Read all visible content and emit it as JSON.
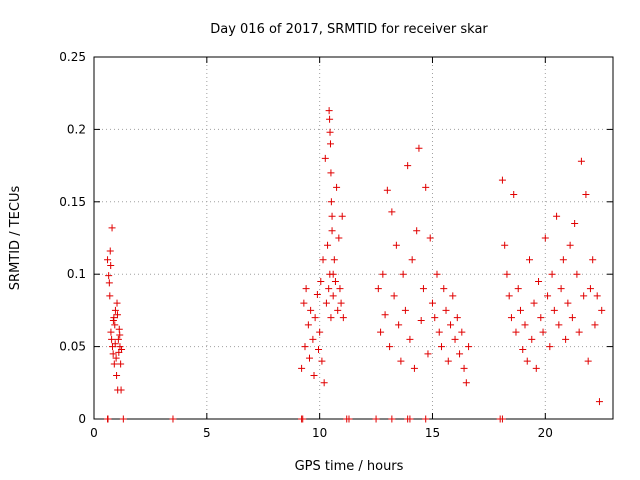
{
  "chart_data": {
    "type": "scatter",
    "title": "Day 016 of 2017, SRMTID for receiver skar",
    "xlabel": "GPS time / hours",
    "ylabel": "SRMTID / TECUs",
    "xlim": [
      0,
      23.0
    ],
    "ylim": [
      0,
      0.25
    ],
    "xticks": [
      0,
      5,
      10,
      15,
      20
    ],
    "xtick_labels": [
      "0",
      "5",
      "10",
      "15",
      "20"
    ],
    "yticks": [
      0,
      0.05,
      0.1,
      0.15,
      0.2,
      0.25
    ],
    "ytick_labels": [
      "0",
      "0.05",
      "0.1",
      "0.15",
      "0.2",
      "0.25"
    ],
    "grid": true,
    "marker": "+",
    "color": "#e00000",
    "series": [
      {
        "name": "SRMTID",
        "x": [
          0.6,
          0.65,
          0.7,
          0.72,
          0.75,
          0.78,
          0.8,
          0.82,
          0.85,
          0.88,
          0.9,
          0.92,
          0.95,
          0.98,
          1.0,
          1.02,
          1.05,
          1.08,
          1.1,
          1.12,
          1.15,
          1.18,
          1.2,
          1.22,
          0.68,
          0.74,
          0.86,
          0.94,
          1.04,
          1.14,
          9.2,
          9.3,
          9.35,
          9.4,
          9.5,
          9.55,
          9.6,
          9.7,
          9.75,
          9.8,
          9.9,
          9.95,
          10.0,
          10.05,
          10.1,
          10.15,
          10.2,
          10.25,
          10.3,
          10.35,
          10.4,
          10.45,
          10.5,
          10.55,
          10.6,
          10.65,
          10.7,
          10.75,
          10.8,
          10.85,
          10.9,
          10.95,
          11.0,
          11.05,
          10.42,
          10.44,
          10.46,
          10.48,
          10.5,
          10.52,
          10.55,
          10.6,
          12.6,
          12.7,
          12.8,
          12.9,
          13.0,
          13.1,
          13.2,
          13.3,
          13.4,
          13.5,
          13.6,
          13.7,
          13.8,
          13.9,
          14.0,
          14.1,
          14.2,
          14.3,
          14.4,
          14.5,
          14.6,
          14.7,
          14.8,
          14.9,
          15.0,
          15.1,
          15.2,
          15.3,
          15.4,
          15.5,
          15.6,
          15.7,
          15.8,
          15.9,
          16.0,
          16.1,
          16.2,
          16.3,
          16.4,
          16.5,
          16.6,
          18.1,
          18.2,
          18.3,
          18.4,
          18.5,
          18.6,
          18.7,
          18.8,
          18.9,
          19.0,
          19.1,
          19.2,
          19.3,
          19.4,
          19.5,
          19.6,
          19.7,
          19.8,
          19.9,
          20.0,
          20.1,
          20.2,
          20.3,
          20.4,
          20.5,
          20.6,
          20.7,
          20.8,
          20.9,
          21.0,
          21.1,
          21.2,
          21.3,
          21.4,
          21.5,
          21.6,
          21.7,
          21.8,
          21.9,
          22.0,
          22.1,
          22.2,
          22.3,
          22.4,
          22.5,
          0.6,
          0.62,
          1.3,
          3.5,
          9.2,
          9.25,
          11.2,
          11.3,
          12.5,
          13.2,
          13.9,
          14.0,
          14.7,
          18.0,
          18.1
        ],
        "y": [
          0.11,
          0.099,
          0.085,
          0.116,
          0.06,
          0.055,
          0.132,
          0.05,
          0.045,
          0.07,
          0.038,
          0.065,
          0.075,
          0.042,
          0.03,
          0.08,
          0.02,
          0.055,
          0.046,
          0.062,
          0.05,
          0.038,
          0.02,
          0.048,
          0.094,
          0.106,
          0.068,
          0.052,
          0.072,
          0.058,
          0.035,
          0.08,
          0.05,
          0.09,
          0.065,
          0.042,
          0.075,
          0.055,
          0.03,
          0.07,
          0.086,
          0.048,
          0.06,
          0.095,
          0.04,
          0.11,
          0.025,
          0.18,
          0.08,
          0.12,
          0.09,
          0.1,
          0.07,
          0.13,
          0.085,
          0.11,
          0.095,
          0.16,
          0.075,
          0.125,
          0.09,
          0.08,
          0.14,
          0.07,
          0.213,
          0.207,
          0.198,
          0.19,
          0.17,
          0.15,
          0.14,
          0.1,
          0.09,
          0.06,
          0.1,
          0.072,
          0.158,
          0.05,
          0.143,
          0.085,
          0.12,
          0.065,
          0.04,
          0.1,
          0.075,
          0.175,
          0.055,
          0.11,
          0.035,
          0.13,
          0.187,
          0.068,
          0.09,
          0.16,
          0.045,
          0.125,
          0.08,
          0.07,
          0.1,
          0.06,
          0.05,
          0.09,
          0.075,
          0.04,
          0.065,
          0.085,
          0.055,
          0.07,
          0.045,
          0.06,
          0.035,
          0.025,
          0.05,
          0.165,
          0.12,
          0.1,
          0.085,
          0.07,
          0.155,
          0.06,
          0.09,
          0.075,
          0.048,
          0.065,
          0.04,
          0.11,
          0.055,
          0.08,
          0.035,
          0.095,
          0.07,
          0.06,
          0.125,
          0.085,
          0.05,
          0.1,
          0.075,
          0.14,
          0.065,
          0.09,
          0.11,
          0.055,
          0.08,
          0.12,
          0.07,
          0.135,
          0.1,
          0.06,
          0.178,
          0.085,
          0.155,
          0.04,
          0.09,
          0.11,
          0.065,
          0.085,
          0.012,
          0.075,
          0,
          0,
          0,
          0,
          0,
          0,
          0,
          0,
          0,
          0,
          0,
          0,
          0,
          0,
          0
        ]
      }
    ]
  }
}
